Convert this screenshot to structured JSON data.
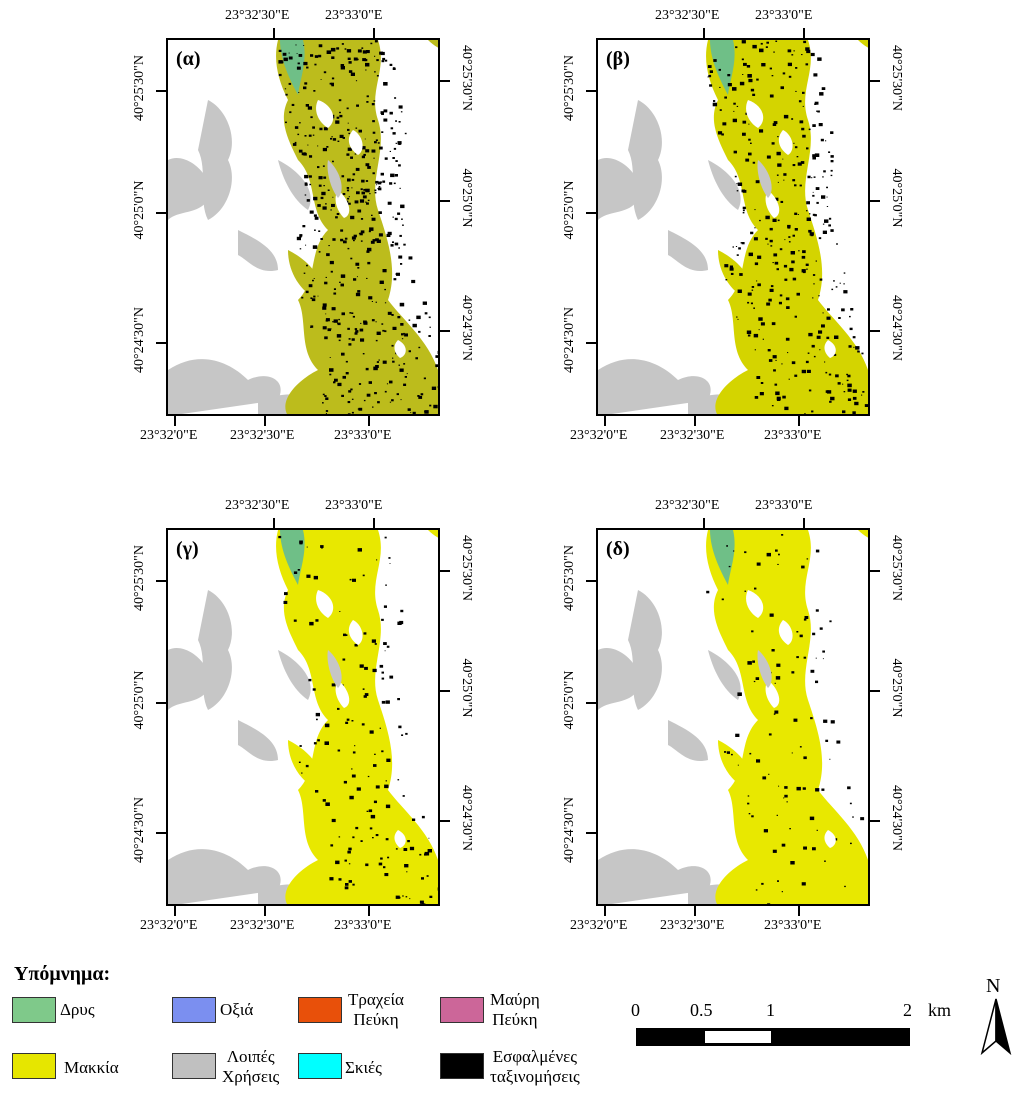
{
  "panels": [
    {
      "label": "(α)",
      "variant": "a"
    },
    {
      "label": "(β)",
      "variant": "b"
    },
    {
      "label": "(γ)",
      "variant": "c"
    },
    {
      "label": "(δ)",
      "variant": "d"
    }
  ],
  "axes": {
    "top_labels": [
      "23°32'30\"E",
      "23°33'0\"E"
    ],
    "bottom_labels": [
      "23°32'0\"E",
      "23°32'30\"E",
      "23°33'0\"E"
    ],
    "left_labels": [
      "40°25'30\"N",
      "40°25'0\"N",
      "40°24'30\"N"
    ],
    "right_labels": [
      "40°25'30\"N",
      "40°25'0\"N",
      "40°24'30\"N"
    ]
  },
  "legend": {
    "title": "Υπόμνημα:",
    "items": [
      {
        "label": "Δρυς",
        "color": "#7fc98a"
      },
      {
        "label": "Οξιά",
        "color": "#7b8ff0"
      },
      {
        "label": "Τραχεία\nΠεύκη",
        "color": "#e8500a"
      },
      {
        "label": "Μαύρη\nΠεύκη",
        "color": "#cc6699"
      },
      {
        "label": "Μακκία",
        "color": "#e6e600"
      },
      {
        "label": "Λοιπές\nΧρήσεις",
        "color": "#c0c0c0"
      },
      {
        "label": "Σκιές",
        "color": "#00ffff"
      },
      {
        "label": "Εσφαλμένες\nταξινομήσεις",
        "color": "#000000"
      }
    ]
  },
  "scalebar": {
    "ticks": [
      "0",
      "0.5",
      "1",
      "2"
    ],
    "unit": "km"
  },
  "north_label": "N"
}
